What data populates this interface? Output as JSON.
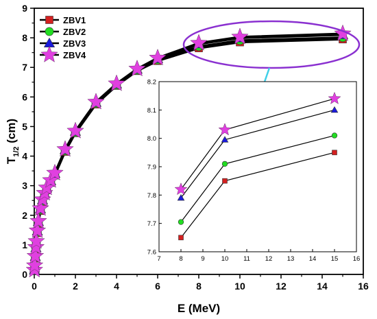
{
  "chart_data": [
    {
      "type": "line",
      "xlabel": "E (MeV)",
      "ylabel_main": "T",
      "ylabel_sub": "1/2",
      "ylabel_unit": " (cm)",
      "xlim": [
        0,
        16
      ],
      "ylim": [
        0,
        9
      ],
      "xticks": [
        0,
        2,
        4,
        6,
        8,
        10,
        12,
        14,
        16
      ],
      "yticks": [
        0,
        1,
        2,
        3,
        4,
        5,
        6,
        7,
        8,
        9
      ],
      "grid": false,
      "legend_position": "top-left",
      "x": [
        0.01,
        0.02,
        0.05,
        0.08,
        0.1,
        0.15,
        0.2,
        0.3,
        0.4,
        0.5,
        0.6,
        0.8,
        1,
        1.5,
        2,
        3,
        4,
        5,
        6,
        8,
        10,
        15
      ],
      "series": [
        {
          "name": "ZBV1",
          "color": "#d42020",
          "marker": "square",
          "values": [
            0.12,
            0.25,
            0.55,
            0.85,
            1.05,
            1.4,
            1.72,
            2.15,
            2.45,
            2.68,
            2.85,
            3.1,
            3.35,
            4.15,
            4.78,
            5.75,
            6.38,
            6.88,
            7.22,
            7.65,
            7.85,
            7.95
          ]
        },
        {
          "name": "ZBV2",
          "color": "#22dd22",
          "marker": "circle",
          "values": [
            0.13,
            0.27,
            0.58,
            0.88,
            1.08,
            1.43,
            1.75,
            2.18,
            2.48,
            2.7,
            2.88,
            3.13,
            3.38,
            4.18,
            4.8,
            5.78,
            6.4,
            6.9,
            7.25,
            7.705,
            7.91,
            8.01
          ]
        },
        {
          "name": "ZBV3",
          "color": "#1a1add",
          "marker": "triangle",
          "values": [
            0.14,
            0.28,
            0.6,
            0.9,
            1.1,
            1.46,
            1.78,
            2.21,
            2.51,
            2.73,
            2.91,
            3.16,
            3.41,
            4.21,
            4.83,
            5.81,
            6.43,
            6.93,
            7.29,
            7.79,
            7.995,
            8.1
          ]
        },
        {
          "name": "ZBV4",
          "color": "#e040e0",
          "marker": "star",
          "values": [
            0.15,
            0.3,
            0.62,
            0.92,
            1.12,
            1.48,
            1.8,
            2.23,
            2.53,
            2.75,
            2.93,
            3.18,
            3.43,
            4.23,
            4.85,
            5.83,
            6.45,
            6.95,
            7.32,
            7.82,
            8.03,
            8.14
          ]
        }
      ]
    },
    {
      "type": "line",
      "inset": true,
      "xlim": [
        7,
        16
      ],
      "ylim": [
        7.6,
        8.2
      ],
      "xticks": [
        7,
        8,
        9,
        10,
        11,
        12,
        13,
        14,
        15,
        16
      ],
      "yticks": [
        "7.6",
        "7.7",
        "7.8",
        "7.9",
        "8.0",
        "8.1",
        "8.2"
      ],
      "grid": false,
      "x": [
        8,
        10,
        15
      ],
      "series": [
        {
          "name": "ZBV1",
          "color": "#d42020",
          "marker": "square",
          "values": [
            7.65,
            7.85,
            7.95
          ]
        },
        {
          "name": "ZBV2",
          "color": "#22dd22",
          "marker": "circle",
          "values": [
            7.705,
            7.91,
            8.01
          ]
        },
        {
          "name": "ZBV3",
          "color": "#1a1add",
          "marker": "triangle",
          "values": [
            7.79,
            7.995,
            8.1
          ]
        },
        {
          "name": "ZBV4",
          "color": "#e040e0",
          "marker": "star",
          "values": [
            7.82,
            8.03,
            8.14
          ]
        }
      ]
    }
  ],
  "colors": {
    "highlight_ellipse": "#8a30d0",
    "pointer_arrow": "#40d0e8",
    "line": "#000000"
  }
}
